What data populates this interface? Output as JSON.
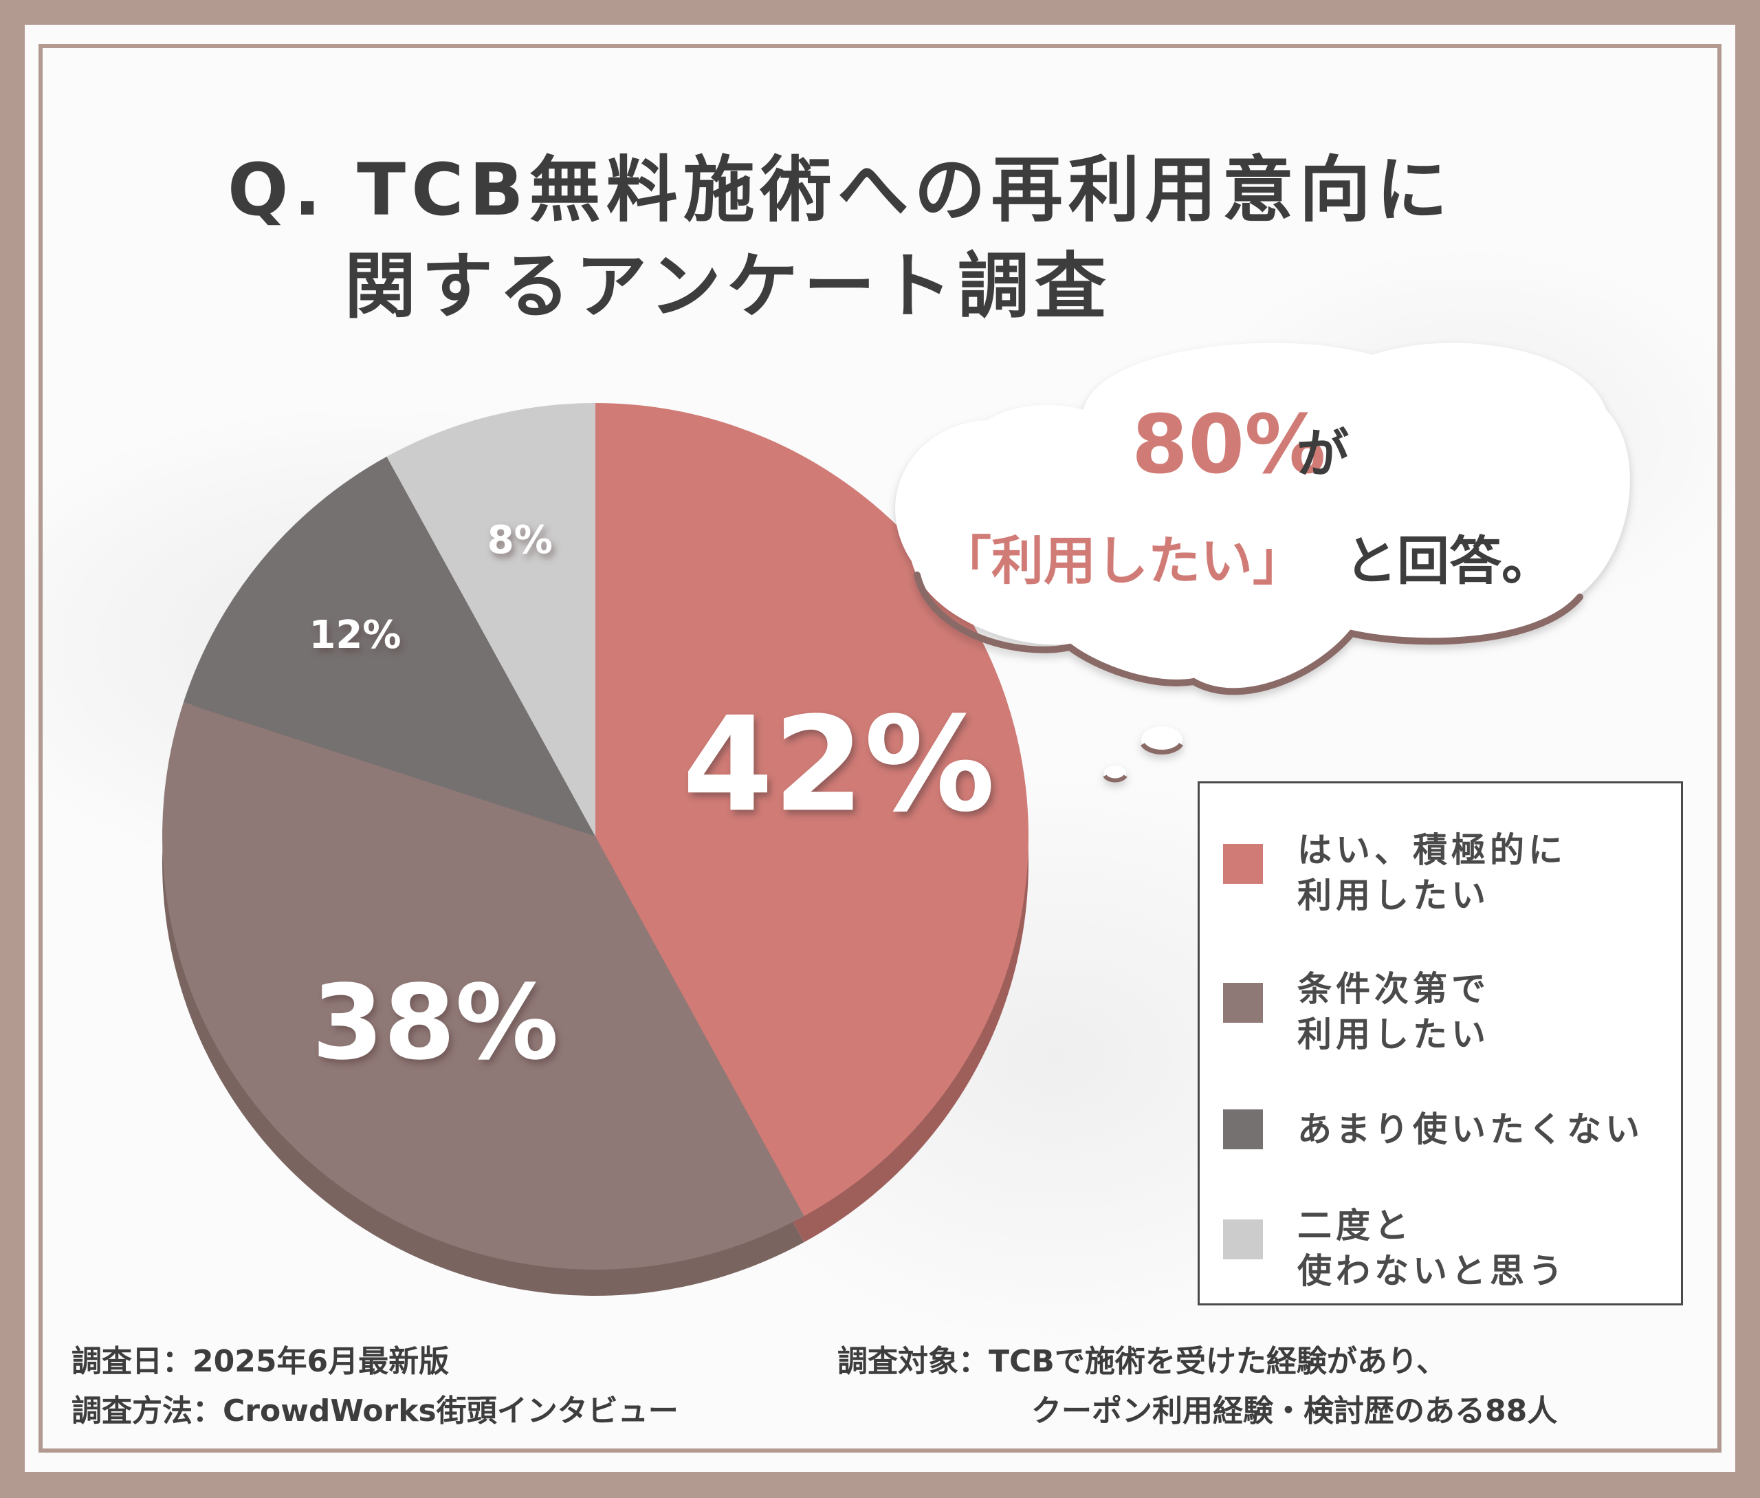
{
  "title": {
    "line1": "Q. TCB無料施術への再利用意向に",
    "line2": "関するアンケート調査"
  },
  "bubble": {
    "percent": "80%",
    "particle": "が",
    "quote": "「利用したい」",
    "rest": "と回答。"
  },
  "chart_data": {
    "type": "pie",
    "categories": [
      "はい、積極的に利用したい",
      "条件次第で利用したい",
      "あまり使いたくない",
      "二度と使わないと思う"
    ],
    "values": [
      42,
      38,
      12,
      8
    ],
    "labels": [
      "42%",
      "38%",
      "12%",
      "8%"
    ],
    "colors": [
      "#d07b76",
      "#8f7977",
      "#767171",
      "#cccccc"
    ],
    "legend_position": "right"
  },
  "legend": {
    "items": [
      {
        "line1": "はい、積極的に",
        "line2": "利用したい",
        "color": "#d07b76"
      },
      {
        "line1": "条件次第で",
        "line2": "利用したい",
        "color": "#8f7977"
      },
      {
        "line1": "あまり使いたくない",
        "line2": "",
        "color": "#767171"
      },
      {
        "line1": "二度と",
        "line2": "使わないと思う",
        "color": "#cccccc"
      }
    ]
  },
  "footer": {
    "date": "調査日：2025年6月最新版",
    "method": "調査方法：CrowdWorks街頭インタビュー",
    "target_line1": "調査対象：TCBで施術を受けた経験があり、",
    "target_line2": "クーポン利用経験・検討歴のある88人"
  }
}
